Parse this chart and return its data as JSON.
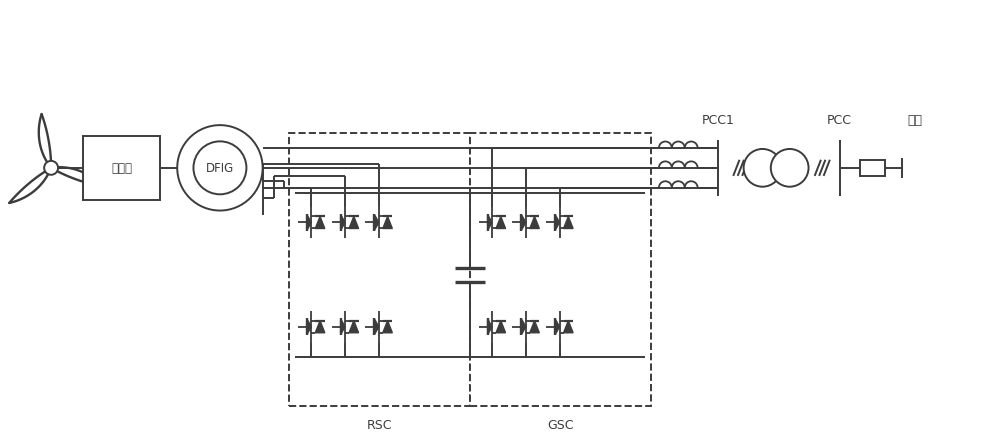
{
  "bg": "#ffffff",
  "lc": "#3c3c3c",
  "lw": 1.4,
  "labels": {
    "gearbox": "齿轮箱",
    "dfig": "DFIG",
    "rsc": "RSC",
    "gsc": "GSC",
    "pcc1": "PCC1",
    "pcc": "PCC",
    "grid": "电网"
  },
  "fs": 9,
  "fs_sm": 8.5
}
